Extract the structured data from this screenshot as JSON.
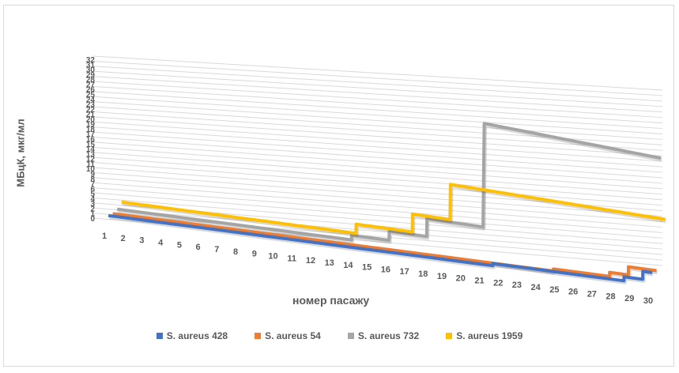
{
  "chart_data": {
    "type": "line",
    "title": "",
    "xlabel": "номер пасажу",
    "ylabel": "МБцК, мкг/мл",
    "x": [
      1,
      2,
      3,
      4,
      5,
      6,
      7,
      8,
      9,
      10,
      11,
      12,
      13,
      14,
      15,
      16,
      17,
      18,
      19,
      20,
      21,
      22,
      23,
      24,
      25,
      26,
      27,
      28,
      29,
      30
    ],
    "y_ticks": [
      0,
      1,
      2,
      3,
      4,
      5,
      6,
      7,
      8,
      9,
      10,
      11,
      12,
      13,
      14,
      15,
      16,
      17,
      18,
      19,
      20,
      21,
      22,
      23,
      24,
      25,
      26,
      27,
      28,
      29,
      30,
      31,
      32
    ],
    "ylim": [
      0,
      32
    ],
    "grid": true,
    "legend_position": "bottom",
    "series": [
      {
        "name": "S. aureus 428",
        "color": "#4472c4",
        "values": [
          0.5,
          0.5,
          0.5,
          0.5,
          0.5,
          0.5,
          0.5,
          0.5,
          0.5,
          0.5,
          0.5,
          0.5,
          0.5,
          0.5,
          0.5,
          0.5,
          0.5,
          0.5,
          0.5,
          0.5,
          0.5,
          1,
          1,
          1,
          1,
          1,
          1,
          1,
          2,
          4
        ]
      },
      {
        "name": "S. aureus 54",
        "color": "#ed7d31",
        "values": [
          0.5,
          0.5,
          0.5,
          0.5,
          0.5,
          0.5,
          0.5,
          0.5,
          0.5,
          0.5,
          0.5,
          0.5,
          0.5,
          0.5,
          0.5,
          0.5,
          0.5,
          0.5,
          0.5,
          0.5,
          0.5,
          0.5,
          0.5,
          0.5,
          1,
          1,
          1,
          2,
          4,
          4
        ]
      },
      {
        "name": "S. aureus 732",
        "color": "#a5a5a5",
        "values": [
          1,
          1,
          1,
          1,
          1,
          1,
          1,
          1,
          1,
          1,
          1,
          1,
          1,
          2,
          2,
          4,
          4,
          8,
          8,
          8,
          32,
          32,
          32,
          32,
          32,
          32,
          32,
          32,
          32,
          32
        ]
      },
      {
        "name": "S. aureus 1959",
        "color": "#ffc000",
        "values": [
          2,
          2,
          2,
          2,
          2,
          2,
          2,
          2,
          2,
          2,
          2,
          2,
          2,
          4,
          4,
          4,
          8,
          8,
          16,
          16,
          16,
          16,
          16,
          16,
          16,
          16,
          16,
          16,
          16,
          16
        ]
      }
    ]
  }
}
